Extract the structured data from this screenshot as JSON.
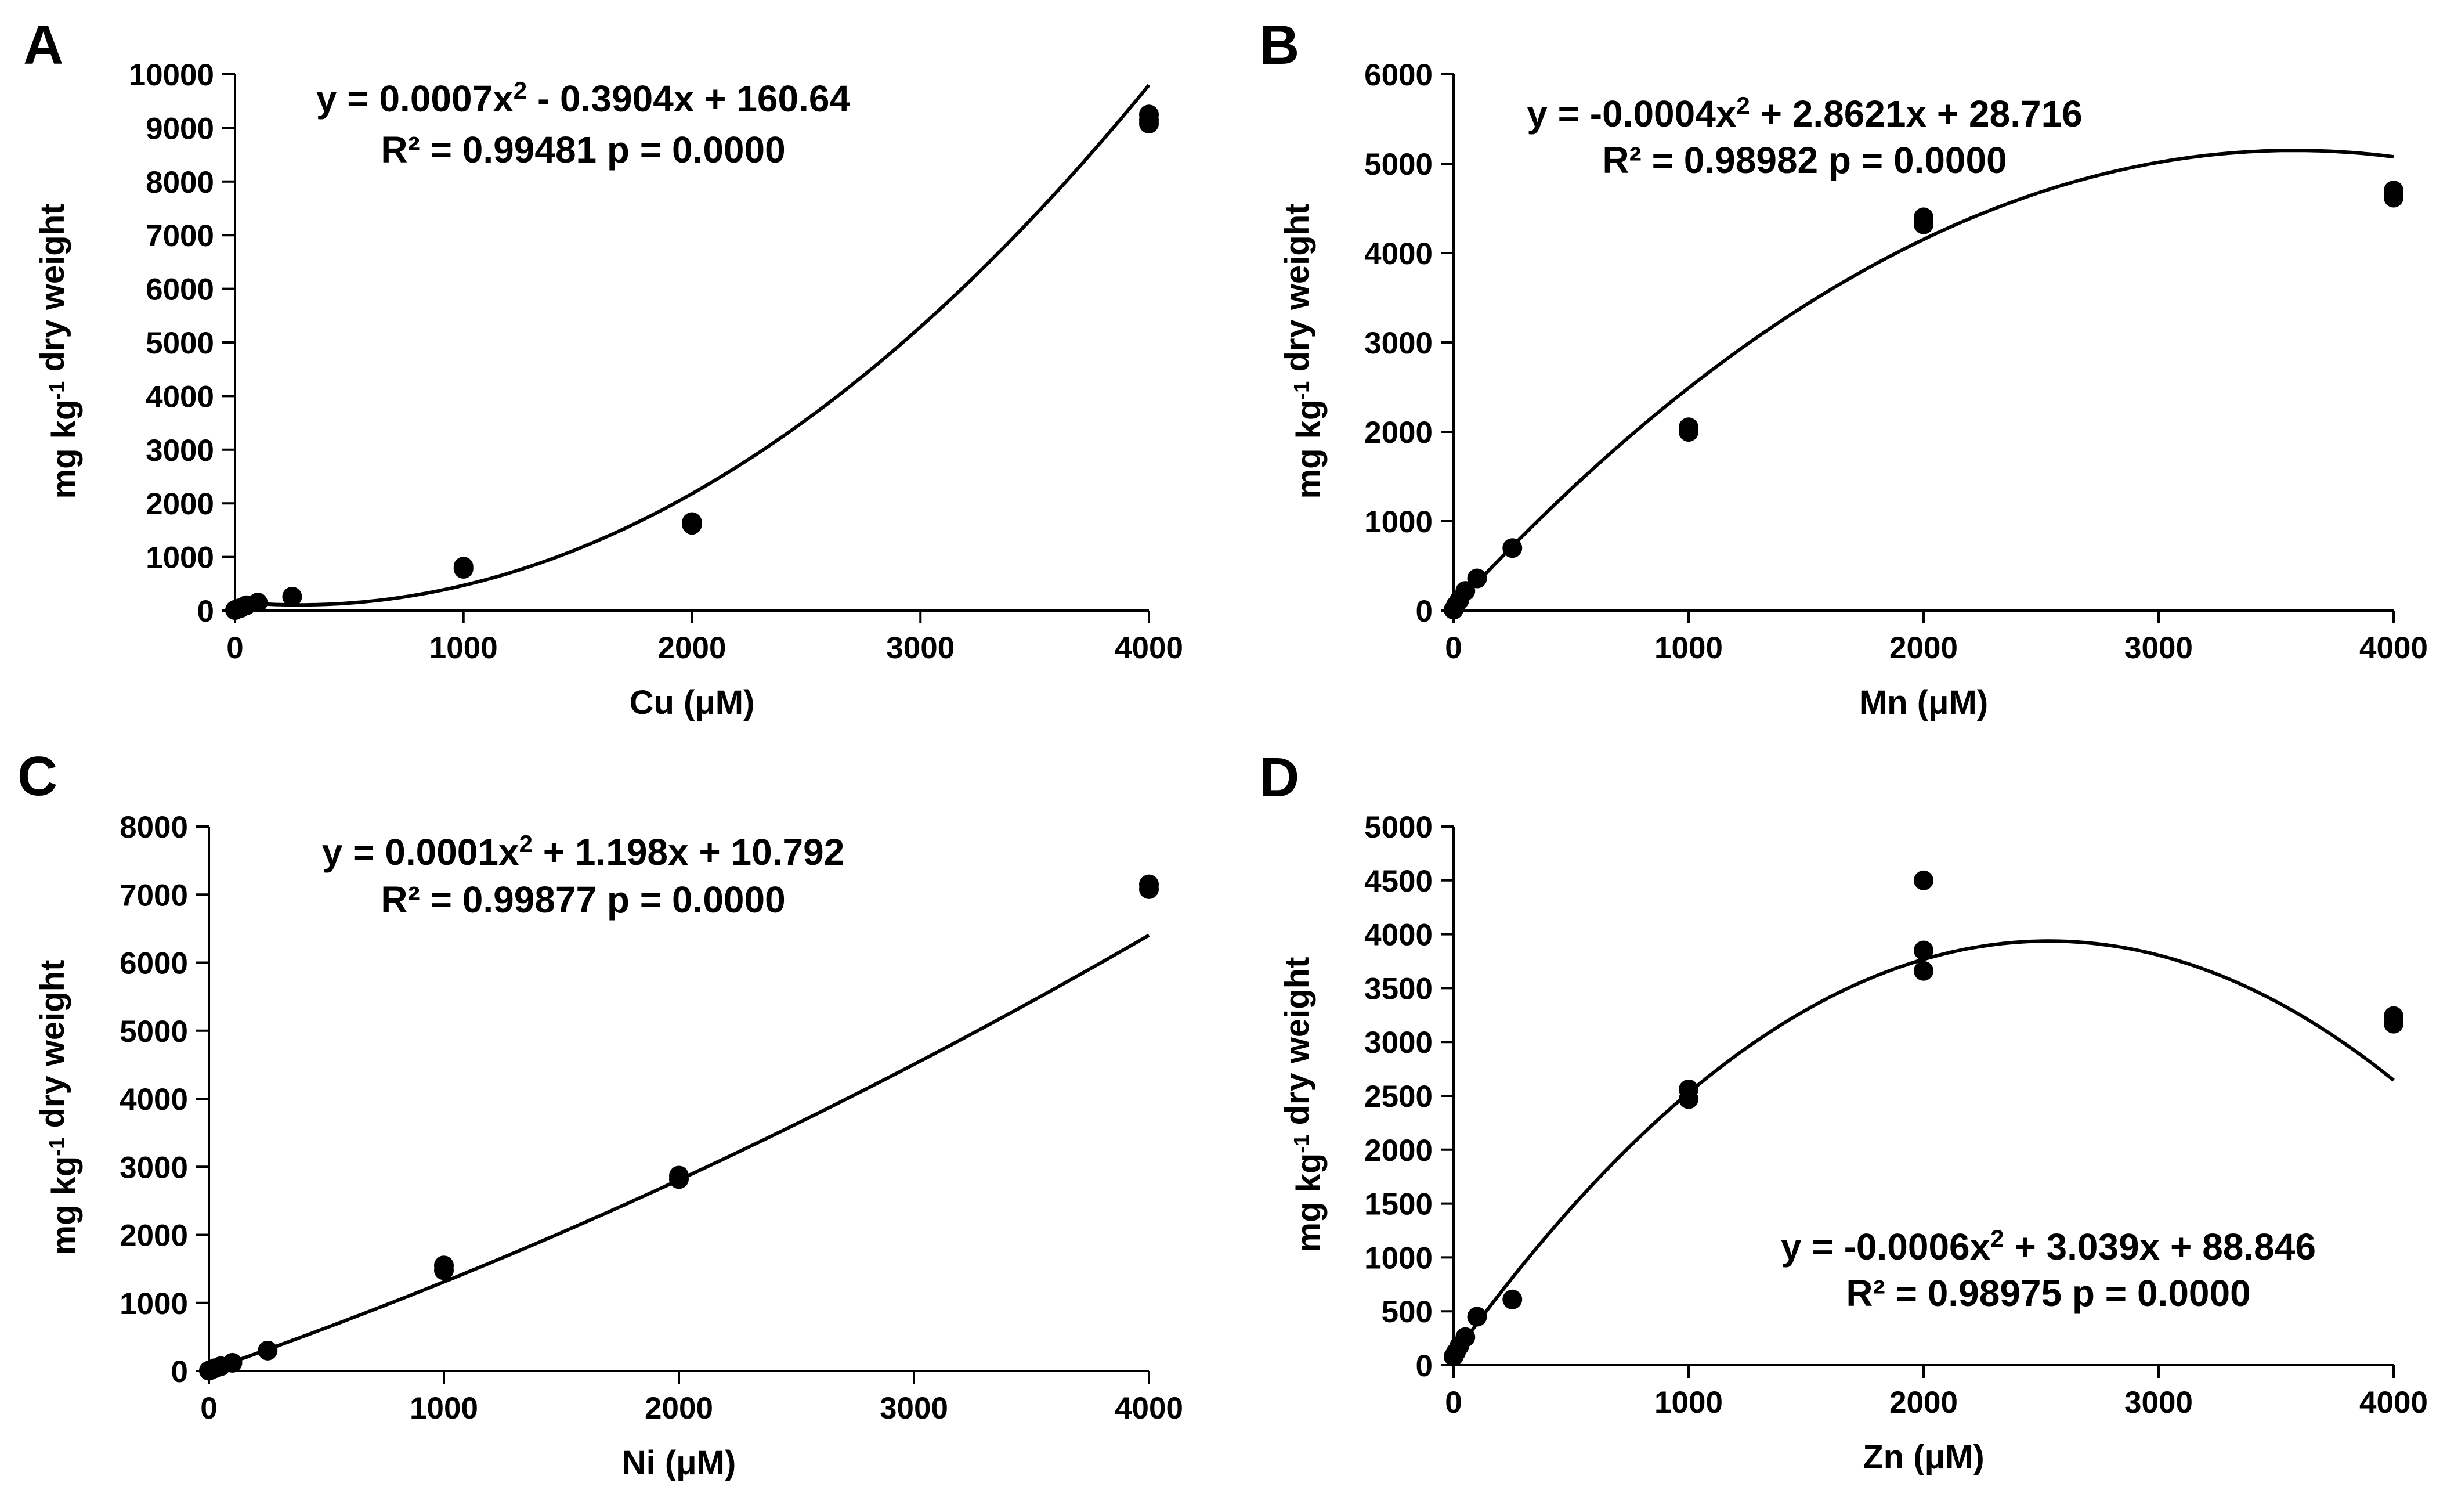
{
  "chart_data": [
    {
      "panel": "A",
      "type": "scatter",
      "xlabel": "Cu (μM)",
      "ylabel": "mg kg-1 dry weight",
      "xlim": [
        0,
        4000
      ],
      "ylim": [
        0,
        10000
      ],
      "xticks": [
        0,
        1000,
        2000,
        3000,
        4000
      ],
      "yticks": [
        0,
        1000,
        2000,
        3000,
        4000,
        5000,
        6000,
        7000,
        8000,
        9000,
        10000
      ],
      "points": [
        [
          0,
          10
        ],
        [
          10,
          30
        ],
        [
          25,
          50
        ],
        [
          50,
          100
        ],
        [
          100,
          150
        ],
        [
          250,
          260
        ],
        [
          1000,
          820
        ],
        [
          1000,
          780
        ],
        [
          2000,
          1650
        ],
        [
          2000,
          1600
        ],
        [
          4000,
          9250
        ],
        [
          4000,
          9150
        ],
        [
          4000,
          9080
        ]
      ],
      "fit": {
        "a": 0.0007,
        "b": -0.3904,
        "c": 160.64
      },
      "equation": "y = 0.0007x² - 0.3904x + 160.64",
      "stats": "R² = 0.99481  p = 0.0000"
    },
    {
      "panel": "B",
      "type": "scatter",
      "xlabel": "Mn (μM)",
      "ylabel": "mg kg-1 dry weight",
      "xlim": [
        0,
        4000
      ],
      "ylim": [
        0,
        6000
      ],
      "xticks": [
        0,
        1000,
        2000,
        3000,
        4000
      ],
      "yticks": [
        0,
        1000,
        2000,
        3000,
        4000,
        5000,
        6000
      ],
      "points": [
        [
          0,
          10
        ],
        [
          10,
          60
        ],
        [
          25,
          120
        ],
        [
          50,
          220
        ],
        [
          100,
          360
        ],
        [
          250,
          700
        ],
        [
          1000,
          2050
        ],
        [
          1000,
          2000
        ],
        [
          2000,
          4400
        ],
        [
          2000,
          4320
        ],
        [
          4000,
          4700
        ],
        [
          4000,
          4620
        ]
      ],
      "fit": {
        "a": -0.0004,
        "b": 2.8621,
        "c": 28.716
      },
      "equation": "y = -0.0004x² + 2.8621x + 28.716",
      "stats": "R² = 0.98982 p = 0.0000"
    },
    {
      "panel": "C",
      "type": "scatter",
      "xlabel": "Ni (μM)",
      "ylabel": "mg kg-1 dry weight",
      "xlim": [
        0,
        4000
      ],
      "ylim": [
        0,
        8000
      ],
      "xticks": [
        0,
        1000,
        2000,
        3000,
        4000
      ],
      "yticks": [
        0,
        1000,
        2000,
        3000,
        4000,
        5000,
        6000,
        7000,
        8000
      ],
      "points": [
        [
          0,
          5
        ],
        [
          10,
          20
        ],
        [
          25,
          40
        ],
        [
          50,
          70
        ],
        [
          100,
          120
        ],
        [
          250,
          300
        ],
        [
          1000,
          1550
        ],
        [
          1000,
          1480
        ],
        [
          2000,
          2870
        ],
        [
          2000,
          2820
        ],
        [
          4000,
          7150
        ],
        [
          4000,
          7080
        ]
      ],
      "fit": {
        "a": 0.0001,
        "b": 1.198,
        "c": 10.792
      },
      "equation": "y = 0.0001x² + 1.198x + 10.792",
      "stats": "R² = 0.99877 p = 0.0000"
    },
    {
      "panel": "D",
      "type": "scatter",
      "xlabel": "Zn (μM)",
      "ylabel": "mg kg-1 dry weight",
      "xlim": [
        0,
        4000
      ],
      "ylim": [
        0,
        5000
      ],
      "xticks": [
        0,
        1000,
        2000,
        3000,
        4000
      ],
      "yticks": [
        0,
        500,
        1000,
        1500,
        2000,
        2500,
        3000,
        3500,
        4000,
        4500,
        5000
      ],
      "points": [
        [
          0,
          80
        ],
        [
          10,
          120
        ],
        [
          25,
          180
        ],
        [
          50,
          260
        ],
        [
          100,
          450
        ],
        [
          250,
          610
        ],
        [
          1000,
          2560
        ],
        [
          1000,
          2470
        ],
        [
          2000,
          4500
        ],
        [
          2000,
          3850
        ],
        [
          2000,
          3660
        ],
        [
          4000,
          3240
        ],
        [
          4000,
          3170
        ]
      ],
      "fit": {
        "a": -0.0006,
        "b": 3.039,
        "c": 88.846
      },
      "equation": "y = -0.0006x² + 3.039x + 88.846",
      "stats": "R² = 0.98975 p = 0.0000"
    }
  ]
}
